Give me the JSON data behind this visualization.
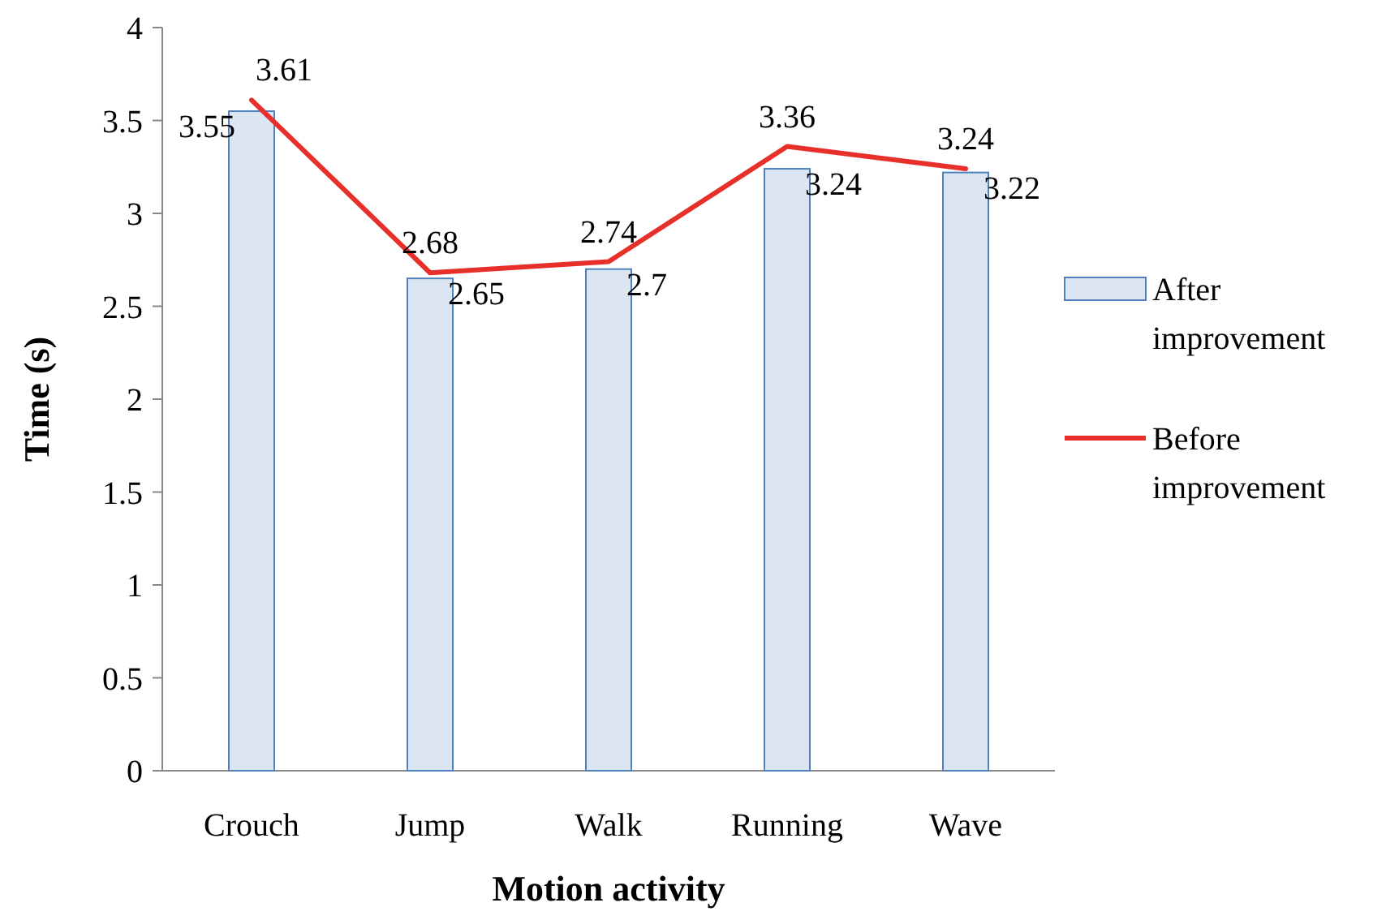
{
  "chart_data": {
    "type": "bar",
    "xlabel": "Motion activity",
    "ylabel": "Time (s)",
    "categories": [
      "Crouch",
      "Jump",
      "Walk",
      "Running",
      "Wave"
    ],
    "series": [
      {
        "name": "After improvement",
        "color": "#dce6f2",
        "values": [
          3.55,
          2.65,
          2.7,
          3.24,
          3.22
        ]
      },
      {
        "name": "Before improvement",
        "type": "line",
        "color": "#e8302a",
        "values": [
          3.61,
          2.68,
          2.74,
          3.36,
          3.24
        ]
      }
    ],
    "ylim": [
      0,
      4
    ],
    "yticks": [
      0,
      0.5,
      1,
      1.5,
      2,
      2.5,
      3,
      3.5,
      4
    ],
    "data_labels": true,
    "grid": false,
    "legend": "right",
    "marker": "none"
  }
}
